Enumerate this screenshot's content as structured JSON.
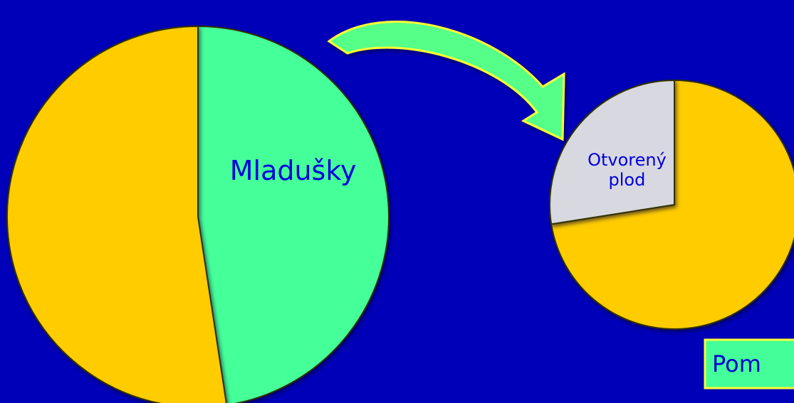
{
  "chart_data": [
    {
      "type": "pie",
      "categories": [
        "Mladušky",
        null
      ],
      "values": [
        47.6,
        52.4
      ],
      "colors": [
        "#44ff99",
        "#ffcc00"
      ]
    },
    {
      "type": "pie",
      "categories": [
        null,
        "Otvorený plod"
      ],
      "values": [
        72.5,
        27.5
      ],
      "colors": [
        "#ffcc00",
        "#d8d8e0"
      ]
    }
  ],
  "box": {
    "text": "Pom"
  }
}
